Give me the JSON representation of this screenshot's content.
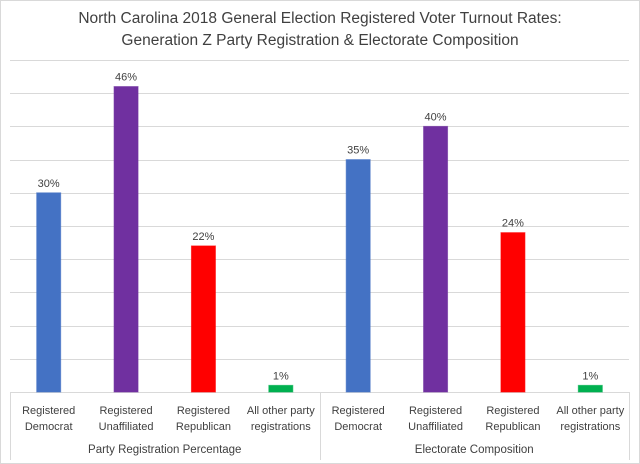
{
  "chart_data": {
    "type": "bar",
    "title": "North Carolina 2018 General Election Registered Voter Turnout Rates:",
    "subtitle": "Generation Z Party Registration & Electorate Composition",
    "xlabel": "",
    "ylabel": "",
    "ylim": [
      0,
      50
    ],
    "grid": true,
    "y_gridline_step": 5,
    "y_tick_labels_visible": false,
    "legend": "none",
    "groups": [
      {
        "name": "Party Registration Percentage",
        "categories": [
          {
            "label_line1": "Registered",
            "label_line2": "Democrat",
            "value": 30,
            "data_label": "30%",
            "color": "#4472C4"
          },
          {
            "label_line1": "Registered",
            "label_line2": "Unaffiliated",
            "value": 46,
            "data_label": "46%",
            "color": "#7030A0"
          },
          {
            "label_line1": "Registered",
            "label_line2": "Republican",
            "value": 22,
            "data_label": "22%",
            "color": "#FF0000"
          },
          {
            "label_line1": "All other party",
            "label_line2": "registrations",
            "value": 1,
            "data_label": "1%",
            "color": "#00B050"
          }
        ]
      },
      {
        "name": "Electorate Composition",
        "categories": [
          {
            "label_line1": "Registered",
            "label_line2": "Democrat",
            "value": 35,
            "data_label": "35%",
            "color": "#4472C4"
          },
          {
            "label_line1": "Registered",
            "label_line2": "Unaffiliated",
            "value": 40,
            "data_label": "40%",
            "color": "#7030A0"
          },
          {
            "label_line1": "Registered",
            "label_line2": "Republican",
            "value": 24,
            "data_label": "24%",
            "color": "#FF0000"
          },
          {
            "label_line1": "All other party",
            "label_line2": "registrations",
            "value": 1,
            "data_label": "1%",
            "color": "#00B050"
          }
        ]
      }
    ]
  }
}
